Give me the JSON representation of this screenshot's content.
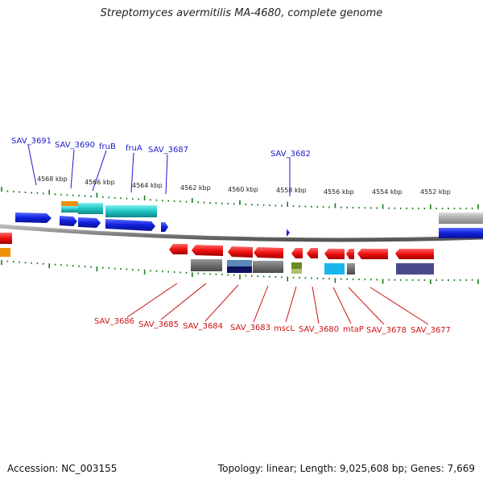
{
  "title": "Streptomyces avermitilis MA-4680, complete genome",
  "footer": {
    "accession": "Accession: NC_003155",
    "summary": "Topology: linear; Length: 9,025,608 bp; Genes: 7,669"
  },
  "scale": {
    "ticks": [
      "4568 kbp",
      "4566 kbp",
      "4564 kbp",
      "4562 kbp",
      "4560 kbp",
      "4558 kbp",
      "4556 kbp",
      "4554 kbp",
      "4552 kbp"
    ]
  },
  "genes_forward": [
    "SAV_3691",
    "SAV_3690",
    "fruB",
    "fruA",
    "SAV_3687",
    "SAV_3682"
  ],
  "genes_reverse": [
    "SAV_3686",
    "SAV_3685",
    "SAV_3684",
    "SAV_3683",
    "mscL",
    "SAV_3680",
    "mtaP",
    "SAV_3678",
    "SAV_3677"
  ],
  "colors": {
    "forward_label": "#1a1acc",
    "reverse_label": "#cc1111",
    "forward_gene": "#1020dd",
    "reverse_gene": "#ee1111",
    "tick": "#1a7a1a",
    "backbone": "#888888",
    "cyan": "#1fc4c4",
    "orange": "#f0900a",
    "gray": "#777777",
    "navy": "#2a2a7a",
    "olive": "#6a8a22",
    "sky": "#19b6ee",
    "slate": "#4a4a8a"
  }
}
